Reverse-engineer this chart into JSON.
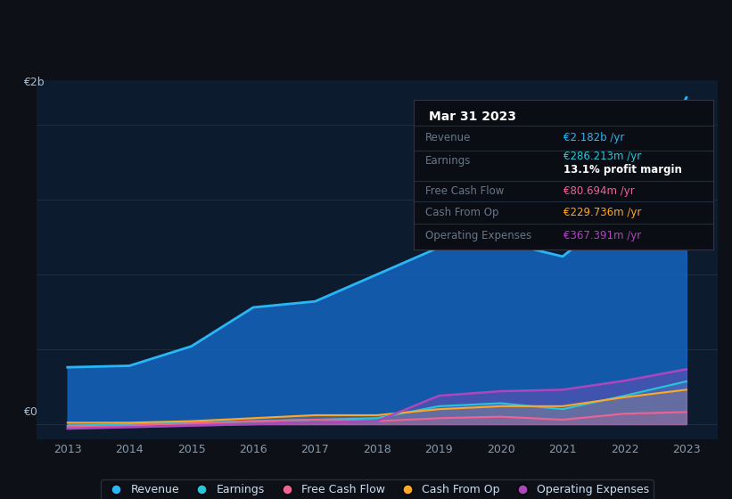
{
  "background_color": "#0d1117",
  "plot_bg_color": "#0d1b2e",
  "grid_color": "#1e2d40",
  "years": [
    2013,
    2014,
    2015,
    2016,
    2017,
    2018,
    2019,
    2020,
    2021,
    2022,
    2023
  ],
  "revenue": [
    0.38,
    0.39,
    0.52,
    0.78,
    0.82,
    1.0,
    1.18,
    1.22,
    1.12,
    1.45,
    2.182
  ],
  "earnings": [
    -0.01,
    0.0,
    0.01,
    0.02,
    0.03,
    0.04,
    0.12,
    0.14,
    0.1,
    0.19,
    0.286
  ],
  "free_cash_flow": [
    -0.02,
    -0.01,
    0.005,
    0.02,
    0.03,
    0.02,
    0.04,
    0.05,
    0.03,
    0.07,
    0.081
  ],
  "cash_from_op": [
    0.01,
    0.01,
    0.02,
    0.04,
    0.06,
    0.06,
    0.1,
    0.12,
    0.12,
    0.18,
    0.23
  ],
  "operating_expenses": [
    -0.03,
    -0.02,
    -0.01,
    0.0,
    0.01,
    0.02,
    0.19,
    0.22,
    0.23,
    0.29,
    0.367
  ],
  "revenue_color": "#29b6f6",
  "earnings_color": "#26c6da",
  "free_cash_flow_color": "#f06292",
  "cash_from_op_color": "#ffa726",
  "operating_expenses_color": "#ab47bc",
  "revenue_fill": "#1565c0",
  "ylim_min": -0.1,
  "ylim_max": 2.3,
  "ylabel_e0": "€0",
  "ylabel_e2b": "€2b",
  "xlabel_years": [
    "2013",
    "2014",
    "2015",
    "2016",
    "2017",
    "2018",
    "2019",
    "2020",
    "2021",
    "2022",
    "2023"
  ],
  "legend_labels": [
    "Revenue",
    "Earnings",
    "Free Cash Flow",
    "Cash From Op",
    "Operating Expenses"
  ],
  "tooltip_title": "Mar 31 2023",
  "tooltip_revenue_label": "Revenue",
  "tooltip_revenue_val": "€2.182b /yr",
  "tooltip_earnings_label": "Earnings",
  "tooltip_earnings_val": "€286.213m /yr",
  "tooltip_profit_margin": "13.1% profit margin",
  "tooltip_fcf_label": "Free Cash Flow",
  "tooltip_fcf_val": "€80.694m /yr",
  "tooltip_cashop_label": "Cash From Op",
  "tooltip_cashop_val": "€229.736m /yr",
  "tooltip_opex_label": "Operating Expenses",
  "tooltip_opex_val": "€367.391m /yr",
  "row_label_color": "#667788",
  "sep_color": "#1e2d40",
  "tick_label_color": "#8899aa",
  "yaxis_label_color": "#aabbcc"
}
